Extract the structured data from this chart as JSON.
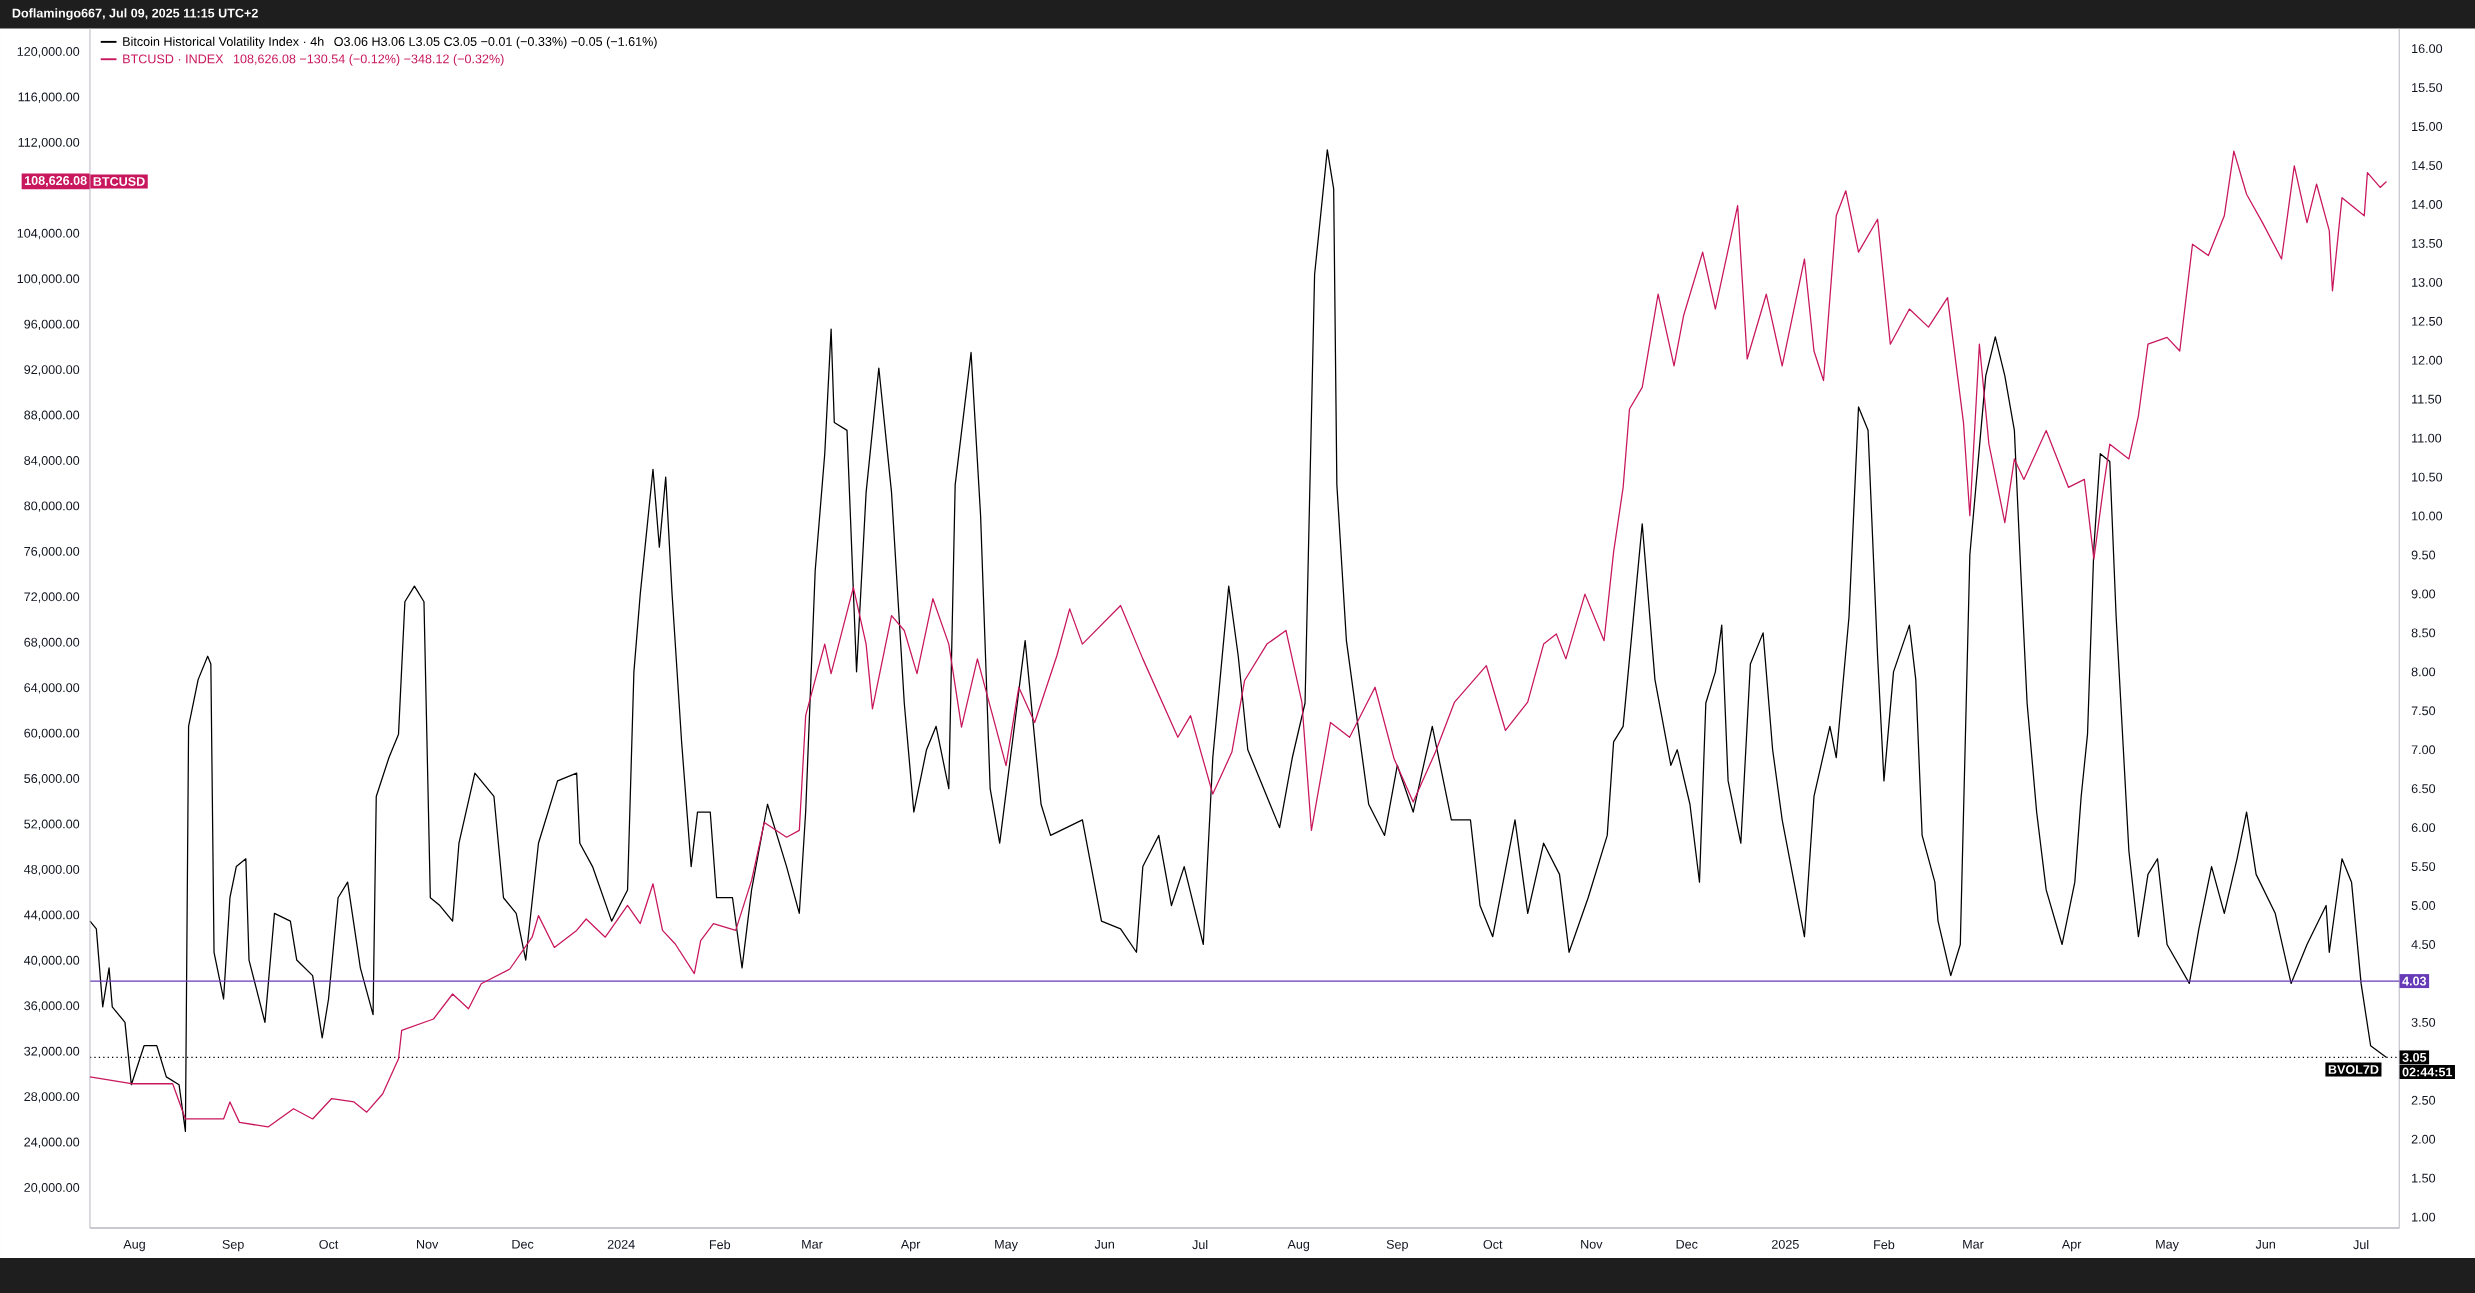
{
  "chart_data": {
    "type": "line",
    "title": "Doflamingo667, Jul 09, 2025 11:15 UTC+2",
    "annotations": [
      "O3.06  H3.06  L3.05  C3.05  −0.01 (−0.33%)  −0.05 (−1.61%)",
      "108,626.08  −130.54 (−0.12%)  −348.12 (−0.32%)",
      "108,626.08",
      "BTCUSD",
      "BVOL7D",
      "02:44:51"
    ],
    "legend": "top left",
    "xlim": [
      "2023-07-18",
      "2025-07-13"
    ],
    "xticks": [
      {
        "value": "2023-08-01",
        "label": "Aug"
      },
      {
        "value": "2023-09-01",
        "label": "Sep"
      },
      {
        "value": "2023-10-01",
        "label": "Oct"
      },
      {
        "value": "2023-11-01",
        "label": "Nov"
      },
      {
        "value": "2023-12-01",
        "label": "Dec"
      },
      {
        "value": "2024-01-01",
        "label": "2024"
      },
      {
        "value": "2024-02-01",
        "label": "Feb"
      },
      {
        "value": "2024-03-01",
        "label": "Mar"
      },
      {
        "value": "2024-04-01",
        "label": "Apr"
      },
      {
        "value": "2024-05-01",
        "label": "May"
      },
      {
        "value": "2024-06-01",
        "label": "Jun"
      },
      {
        "value": "2024-07-01",
        "label": "Jul"
      },
      {
        "value": "2024-08-01",
        "label": "Aug"
      },
      {
        "value": "2024-09-01",
        "label": "Sep"
      },
      {
        "value": "2024-10-01",
        "label": "Oct"
      },
      {
        "value": "2024-11-01",
        "label": "Nov"
      },
      {
        "value": "2024-12-01",
        "label": "Dec"
      },
      {
        "value": "2025-01-01",
        "label": "2025"
      },
      {
        "value": "2025-02-01",
        "label": "Feb"
      },
      {
        "value": "2025-03-01",
        "label": "Mar"
      },
      {
        "value": "2025-04-01",
        "label": "Apr"
      },
      {
        "value": "2025-05-01",
        "label": "May"
      },
      {
        "value": "2025-06-01",
        "label": "Jun"
      },
      {
        "value": "2025-07-01",
        "label": "Jul"
      }
    ],
    "ylim": [
      16500,
      122100
    ],
    "yticks": [
      {
        "value": 20000,
        "label": "20,000.00"
      },
      {
        "value": 24000,
        "label": "24,000.00"
      },
      {
        "value": 28000,
        "label": "28,000.00"
      },
      {
        "value": 32000,
        "label": "32,000.00"
      },
      {
        "value": 36000,
        "label": "36,000.00"
      },
      {
        "value": 40000,
        "label": "40,000.00"
      },
      {
        "value": 44000,
        "label": "44,000.00"
      },
      {
        "value": 48000,
        "label": "48,000.00"
      },
      {
        "value": 52000,
        "label": "52,000.00"
      },
      {
        "value": 56000,
        "label": "56,000.00"
      },
      {
        "value": 60000,
        "label": "60,000.00"
      },
      {
        "value": 64000,
        "label": "64,000.00"
      },
      {
        "value": 68000,
        "label": "68,000.00"
      },
      {
        "value": 72000,
        "label": "72,000.00"
      },
      {
        "value": 76000,
        "label": "76,000.00"
      },
      {
        "value": 80000,
        "label": "80,000.00"
      },
      {
        "value": 84000,
        "label": "84,000.00"
      },
      {
        "value": 88000,
        "label": "88,000.00"
      },
      {
        "value": 92000,
        "label": "92,000.00"
      },
      {
        "value": 96000,
        "label": "96,000.00"
      },
      {
        "value": 100000,
        "label": "100,000.00"
      },
      {
        "value": 104000,
        "label": "104,000.00"
      },
      {
        "value": 112000,
        "label": "112,000.00"
      },
      {
        "value": 116000,
        "label": "116,000.00"
      },
      {
        "value": 120000,
        "label": "120,000.00"
      }
    ],
    "y2lim": [
      0.86,
      16.26
    ],
    "y2ticks": [
      {
        "value": 1,
        "label": "1.00"
      },
      {
        "value": 1.5,
        "label": "1.50"
      },
      {
        "value": 2,
        "label": "2.00"
      },
      {
        "value": 2.5,
        "label": "2.50"
      },
      {
        "value": 3.5,
        "label": "3.50"
      },
      {
        "value": 4.5,
        "label": "4.50"
      },
      {
        "value": 5,
        "label": "5.00"
      },
      {
        "value": 5.5,
        "label": "5.50"
      },
      {
        "value": 6,
        "label": "6.00"
      },
      {
        "value": 6.5,
        "label": "6.50"
      },
      {
        "value": 7,
        "label": "7.00"
      },
      {
        "value": 7.5,
        "label": "7.50"
      },
      {
        "value": 8,
        "label": "8.00"
      },
      {
        "value": 8.5,
        "label": "8.50"
      },
      {
        "value": 9,
        "label": "9.00"
      },
      {
        "value": 9.5,
        "label": "9.50"
      },
      {
        "value": 10,
        "label": "10.00"
      },
      {
        "value": 10.5,
        "label": "10.50"
      },
      {
        "value": 11,
        "label": "11.00"
      },
      {
        "value": 11.5,
        "label": "11.50"
      },
      {
        "value": 12,
        "label": "12.00"
      },
      {
        "value": 12.5,
        "label": "12.50"
      },
      {
        "value": 13,
        "label": "13.00"
      },
      {
        "value": 13.5,
        "label": "13.50"
      },
      {
        "value": 14,
        "label": "14.00"
      },
      {
        "value": 14.5,
        "label": "14.50"
      },
      {
        "value": 15,
        "label": "15.00"
      },
      {
        "value": 15.5,
        "label": "15.50"
      },
      {
        "value": 16,
        "label": "16.00"
      }
    ],
    "ref_lines": [
      {
        "axis": "y2",
        "value": 4.03,
        "label": "4.03",
        "color": "#673ab7",
        "line_style": "solid"
      },
      {
        "axis": "y2",
        "value": 3.05,
        "label": "3.05",
        "color": "#000000",
        "line_style": "dotted"
      }
    ],
    "series": [
      {
        "name": "Bitcoin Historical Volatility Index · 4h",
        "color": "#000000",
        "axis": "y2",
        "x": [
          "2023-07-18",
          "2023-07-20",
          "2023-07-22",
          "2023-07-24",
          "2023-07-25",
          "2023-07-29",
          "2023-07-31",
          "2023-08-04",
          "2023-08-08",
          "2023-08-11",
          "2023-08-15",
          "2023-08-17",
          "2023-08-18",
          "2023-08-21",
          "2023-08-24",
          "2023-08-25",
          "2023-08-26",
          "2023-08-29",
          "2023-08-31",
          "2023-09-02",
          "2023-09-05",
          "2023-09-06",
          "2023-09-11",
          "2023-09-14",
          "2023-09-19",
          "2023-09-21",
          "2023-09-26",
          "2023-09-29",
          "2023-10-01",
          "2023-10-04",
          "2023-10-07",
          "2023-10-11",
          "2023-10-15",
          "2023-10-16",
          "2023-10-20",
          "2023-10-23",
          "2023-10-25",
          "2023-10-28",
          "2023-10-31",
          "2023-11-02",
          "2023-11-05",
          "2023-11-09",
          "2023-11-11",
          "2023-11-16",
          "2023-11-22",
          "2023-11-25",
          "2023-11-29",
          "2023-12-02",
          "2023-12-06",
          "2023-12-12",
          "2023-12-18",
          "2023-12-19",
          "2023-12-23",
          "2023-12-29",
          "2024-01-03",
          "2024-01-05",
          "2024-01-07",
          "2024-01-11",
          "2024-01-13",
          "2024-01-15",
          "2024-01-17",
          "2024-01-20",
          "2024-01-23",
          "2024-01-25",
          "2024-01-29",
          "2024-01-31",
          "2024-02-05",
          "2024-02-08",
          "2024-02-11",
          "2024-02-16",
          "2024-02-22",
          "2024-02-26",
          "2024-02-28",
          "2024-03-02",
          "2024-03-05",
          "2024-03-07",
          "2024-03-08",
          "2024-03-12",
          "2024-03-15",
          "2024-03-18",
          "2024-03-22",
          "2024-03-26",
          "2024-03-30",
          "2024-04-02",
          "2024-04-06",
          "2024-04-09",
          "2024-04-13",
          "2024-04-15",
          "2024-04-20",
          "2024-04-23",
          "2024-04-26",
          "2024-04-29",
          "2024-05-07",
          "2024-05-12",
          "2024-05-15",
          "2024-05-25",
          "2024-05-31",
          "2024-06-06",
          "2024-06-11",
          "2024-06-13",
          "2024-06-18",
          "2024-06-22",
          "2024-06-26",
          "2024-07-02",
          "2024-07-05",
          "2024-07-10",
          "2024-07-13",
          "2024-07-16",
          "2024-07-23",
          "2024-07-26",
          "2024-07-30",
          "2024-08-03",
          "2024-08-06",
          "2024-08-10",
          "2024-08-12",
          "2024-08-13",
          "2024-08-16",
          "2024-08-23",
          "2024-08-28",
          "2024-09-01",
          "2024-09-06",
          "2024-09-12",
          "2024-09-18",
          "2024-09-24",
          "2024-09-27",
          "2024-10-01",
          "2024-10-08",
          "2024-10-12",
          "2024-10-17",
          "2024-10-22",
          "2024-10-25",
          "2024-10-31",
          "2024-11-06",
          "2024-11-08",
          "2024-11-11",
          "2024-11-14",
          "2024-11-17",
          "2024-11-21",
          "2024-11-26",
          "2024-11-28",
          "2024-12-02",
          "2024-12-05",
          "2024-12-07",
          "2024-12-10",
          "2024-12-12",
          "2024-12-14",
          "2024-12-18",
          "2024-12-21",
          "2024-12-25",
          "2024-12-28",
          "2024-12-31",
          "2025-01-07",
          "2025-01-10",
          "2025-01-15",
          "2025-01-17",
          "2025-01-21",
          "2025-01-24",
          "2025-01-27",
          "2025-01-30",
          "2025-02-01",
          "2025-02-04",
          "2025-02-09",
          "2025-02-11",
          "2025-02-13",
          "2025-02-17",
          "2025-02-18",
          "2025-02-22",
          "2025-02-25",
          "2025-02-28",
          "2025-03-05",
          "2025-03-08",
          "2025-03-11",
          "2025-03-14",
          "2025-03-16",
          "2025-03-18",
          "2025-03-21",
          "2025-03-24",
          "2025-03-29",
          "2025-04-02",
          "2025-04-04",
          "2025-04-06",
          "2025-04-08",
          "2025-04-10",
          "2025-04-13",
          "2025-04-15",
          "2025-04-19",
          "2025-04-22",
          "2025-04-25",
          "2025-04-28",
          "2025-05-01",
          "2025-05-08",
          "2025-05-11",
          "2025-05-15",
          "2025-05-19",
          "2025-05-23",
          "2025-05-26",
          "2025-05-29",
          "2025-06-04",
          "2025-06-09",
          "2025-06-14",
          "2025-06-20",
          "2025-06-21",
          "2025-06-25",
          "2025-06-28",
          "2025-07-01",
          "2025-07-04",
          "2025-07-09"
        ],
        "values": [
          4.8,
          4.7,
          3.7,
          4.2,
          3.7,
          3.5,
          2.7,
          3.2,
          3.2,
          2.8,
          2.7,
          2.1,
          7.3,
          7.9,
          8.2,
          8.1,
          4.4,
          3.8,
          5.1,
          5.5,
          5.6,
          4.3,
          3.5,
          4.9,
          4.8,
          4.3,
          4.1,
          3.3,
          3.8,
          5.1,
          5.3,
          4.2,
          3.6,
          6.4,
          6.9,
          7.2,
          8.9,
          9.1,
          8.9,
          5.1,
          5.0,
          4.8,
          5.8,
          6.7,
          6.4,
          5.1,
          4.9,
          4.3,
          5.8,
          6.6,
          6.7,
          5.8,
          5.5,
          4.8,
          5.2,
          8.0,
          9.0,
          10.6,
          9.6,
          10.5,
          9.0,
          7.1,
          5.5,
          6.2,
          6.2,
          5.1,
          5.1,
          4.2,
          5.2,
          6.3,
          5.5,
          4.9,
          6.2,
          9.3,
          10.8,
          12.4,
          11.2,
          11.1,
          8.0,
          10.3,
          11.9,
          10.3,
          7.6,
          6.2,
          7.0,
          7.3,
          6.5,
          10.4,
          12.1,
          10.0,
          6.5,
          5.8,
          8.4,
          6.3,
          5.9,
          6.1,
          4.8,
          4.7,
          4.4,
          5.5,
          5.9,
          5.0,
          5.5,
          4.5,
          6.9,
          9.1,
          8.2,
          7.0,
          6.3,
          6.0,
          6.9,
          7.6,
          13.1,
          14.7,
          14.2,
          10.4,
          8.4,
          6.3,
          5.9,
          6.8,
          6.2,
          7.3,
          6.1,
          6.1,
          5.0,
          4.6,
          6.1,
          4.9,
          5.8,
          5.4,
          4.4,
          5.1,
          5.9,
          7.1,
          7.3,
          8.6,
          9.9,
          7.9,
          6.8,
          7.0,
          6.3,
          5.3,
          7.6,
          8.0,
          8.6,
          6.6,
          5.8,
          8.1,
          8.5,
          7.0,
          6.1,
          4.6,
          6.4,
          7.3,
          6.9,
          8.7,
          11.4,
          11.1,
          8.2,
          6.6,
          8.0,
          8.6,
          7.9,
          5.9,
          5.3,
          4.8,
          4.1,
          4.5,
          9.5,
          11.8,
          12.3,
          11.8,
          11.1,
          9.3,
          7.6,
          6.2,
          5.2,
          4.5,
          5.3,
          6.4,
          7.2,
          9.6,
          10.8,
          10.7,
          8.7,
          5.7,
          4.6,
          5.4,
          5.6,
          4.5,
          4.0,
          4.7,
          5.5,
          4.9,
          5.6,
          6.2,
          5.4,
          4.9,
          4.0,
          4.5,
          5.0,
          4.4,
          5.6,
          5.3,
          4.0,
          3.2,
          3.05
        ]
      },
      {
        "name": "BTCUSD · INDEX",
        "color": "#c8175d",
        "x": [
          "2023-07-18",
          "2023-07-31",
          "2023-08-13",
          "2023-08-17",
          "2023-08-29",
          "2023-08-31",
          "2023-09-03",
          "2023-09-12",
          "2023-09-20",
          "2023-09-26",
          "2023-10-02",
          "2023-10-09",
          "2023-10-13",
          "2023-10-18",
          "2023-10-23",
          "2023-10-24",
          "2023-11-03",
          "2023-11-09",
          "2023-11-14",
          "2023-11-18",
          "2023-11-27",
          "2023-12-04",
          "2023-12-06",
          "2023-12-11",
          "2023-12-18",
          "2023-12-21",
          "2023-12-27",
          "2024-01-03",
          "2024-01-07",
          "2024-01-11",
          "2024-01-14",
          "2024-01-18",
          "2024-01-24",
          "2024-01-26",
          "2024-01-30",
          "2024-02-06",
          "2024-02-11",
          "2024-02-15",
          "2024-02-22",
          "2024-02-26",
          "2024-02-28",
          "2024-03-05",
          "2024-03-07",
          "2024-03-14",
          "2024-03-18",
          "2024-03-20",
          "2024-03-26",
          "2024-03-30",
          "2024-04-03",
          "2024-04-08",
          "2024-04-13",
          "2024-04-17",
          "2024-04-22",
          "2024-05-01",
          "2024-05-05",
          "2024-05-10",
          "2024-05-17",
          "2024-05-21",
          "2024-05-25",
          "2024-06-06",
          "2024-06-13",
          "2024-06-24",
          "2024-06-28",
          "2024-07-05",
          "2024-07-11",
          "2024-07-15",
          "2024-07-22",
          "2024-07-28",
          "2024-08-02",
          "2024-08-05",
          "2024-08-11",
          "2024-08-17",
          "2024-08-25",
          "2024-08-31",
          "2024-09-06",
          "2024-09-13",
          "2024-09-19",
          "2024-09-29",
          "2024-10-05",
          "2024-10-12",
          "2024-10-17",
          "2024-10-21",
          "2024-10-24",
          "2024-10-30",
          "2024-11-05",
          "2024-11-08",
          "2024-11-11",
          "2024-11-13",
          "2024-11-17",
          "2024-11-22",
          "2024-11-27",
          "2024-11-30",
          "2024-12-06",
          "2024-12-10",
          "2024-12-17",
          "2024-12-20",
          "2024-12-26",
          "2024-12-31",
          "2025-01-07",
          "2025-01-10",
          "2025-01-13",
          "2025-01-17",
          "2025-01-20",
          "2025-01-24",
          "2025-01-30",
          "2025-02-03",
          "2025-02-09",
          "2025-02-15",
          "2025-02-21",
          "2025-02-26",
          "2025-02-28",
          "2025-03-03",
          "2025-03-06",
          "2025-03-11",
          "2025-03-14",
          "2025-03-17",
          "2025-03-24",
          "2025-03-31",
          "2025-04-05",
          "2025-04-08",
          "2025-04-11",
          "2025-04-13",
          "2025-04-19",
          "2025-04-22",
          "2025-04-25",
          "2025-05-01",
          "2025-05-05",
          "2025-05-09",
          "2025-05-14",
          "2025-05-19",
          "2025-05-22",
          "2025-05-26",
          "2025-05-31",
          "2025-06-06",
          "2025-06-10",
          "2025-06-14",
          "2025-06-17",
          "2025-06-21",
          "2025-06-22",
          "2025-06-25",
          "2025-07-02",
          "2025-07-03",
          "2025-07-07",
          "2025-07-09"
        ],
        "values": [
          29800,
          29200,
          29200,
          26100,
          26100,
          27600,
          25800,
          25400,
          27000,
          26100,
          27900,
          27600,
          26700,
          28300,
          31400,
          33900,
          34900,
          37100,
          35800,
          38000,
          39300,
          42100,
          44000,
          41200,
          42700,
          43700,
          42100,
          44900,
          43300,
          46800,
          42700,
          41500,
          38900,
          41800,
          43300,
          42700,
          47100,
          52200,
          50900,
          51500,
          61600,
          67900,
          65300,
          72900,
          67900,
          62200,
          70400,
          69100,
          65300,
          71900,
          67900,
          60600,
          66600,
          57200,
          64100,
          61000,
          66900,
          71000,
          67900,
          71300,
          66600,
          59700,
          61600,
          54700,
          58400,
          64700,
          67900,
          69100,
          62800,
          51500,
          61000,
          59700,
          64100,
          57800,
          54000,
          58400,
          62800,
          66000,
          60300,
          62800,
          67900,
          68800,
          66600,
          72300,
          68200,
          76000,
          81700,
          88600,
          90500,
          98700,
          92400,
          96800,
          102400,
          97400,
          106500,
          93000,
          98700,
          92400,
          101800,
          93700,
          91100,
          105600,
          107800,
          102400,
          105300,
          94300,
          97400,
          95800,
          98400,
          87400,
          79200,
          94300,
          85500,
          78600,
          84200,
          82400,
          86700,
          81700,
          82400,
          75400,
          81700,
          85500,
          84200,
          88000,
          94300,
          94900,
          93700,
          103100,
          102100,
          105600,
          111300,
          107500,
          105000,
          101800,
          110000,
          105000,
          108400,
          104300,
          99000,
          107200,
          105600,
          109400,
          108100,
          108626.08
        ]
      }
    ]
  }
}
